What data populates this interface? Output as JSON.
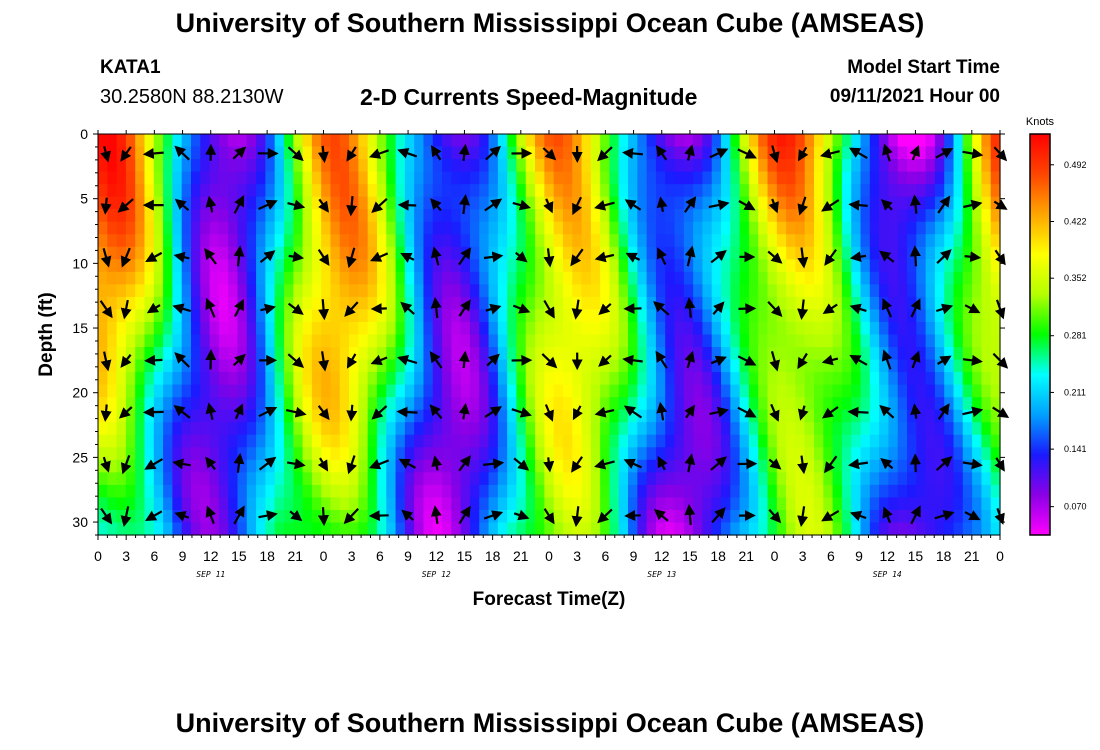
{
  "header": {
    "title": "University of Southern Mississippi Ocean Cube (AMSEAS)",
    "station": "KATA1",
    "latlon": "30.2580N  88.2130W",
    "subtitle": "2-D Currents Speed-Magnitude",
    "model_start_label": "Model Start Time",
    "model_start_value": "09/11/2021 Hour 00"
  },
  "footer": {
    "title": "University of Southern Mississippi Ocean Cube (AMSEAS)"
  },
  "colors": {
    "colorbar": [
      "#ff00ff",
      "#8a00e6",
      "#1a1aff",
      "#00a0ff",
      "#00ffff",
      "#00ff00",
      "#b4ff00",
      "#ffff00",
      "#ffa500",
      "#ff4500",
      "#ff0000"
    ],
    "arrow": "#000000"
  },
  "chart_data": {
    "type": "heatmap",
    "title": "2-D Currents Speed-Magnitude",
    "xlabel": "Forecast Time(Z)",
    "ylabel": "Depth (ft)",
    "x_ticks": [
      "0",
      "3",
      "6",
      "9",
      "12",
      "15",
      "18",
      "21",
      "0",
      "3",
      "6",
      "9",
      "12",
      "15",
      "18",
      "21",
      "0",
      "3",
      "6",
      "9",
      "12",
      "15",
      "18",
      "21",
      "0",
      "3",
      "6",
      "9",
      "12",
      "15",
      "18",
      "21",
      "0"
    ],
    "date_labels": [
      {
        "label": "SEP 11",
        "hour": 12
      },
      {
        "label": "SEP 12",
        "hour": 36
      },
      {
        "label": "SEP 13",
        "hour": 60
      },
      {
        "label": "SEP 14",
        "hour": 84
      }
    ],
    "x_range_hours": [
      0,
      96
    ],
    "y_ticks": [
      "0",
      "5",
      "10",
      "15",
      "20",
      "25",
      "30"
    ],
    "y_range_ft": [
      0,
      31
    ],
    "colorbar": {
      "units": "Knots",
      "labels": [
        "0.492",
        "0.422",
        "0.352",
        "0.281",
        "0.211",
        "0.141",
        "0.070"
      ],
      "range": [
        0.035,
        0.53
      ]
    },
    "vectors": "current direction arrows overlaid on speed field"
  }
}
